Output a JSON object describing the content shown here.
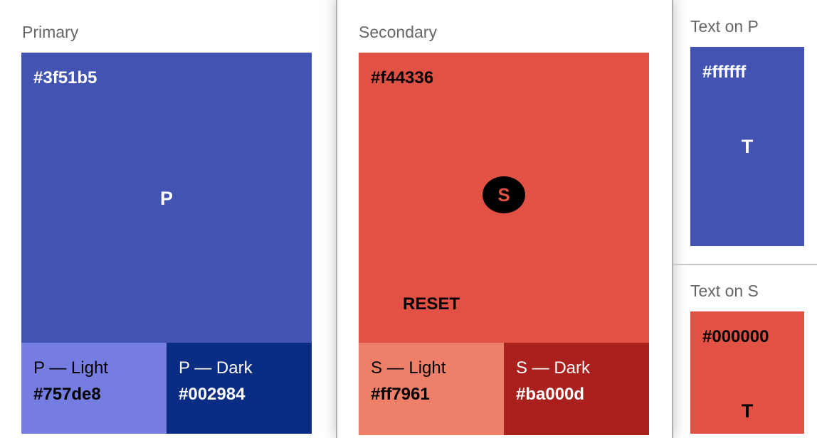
{
  "primary": {
    "title": "Primary",
    "hex": "#3f51b5",
    "letter": "P",
    "light_label": "P — Light",
    "light_hex": "#757de8",
    "dark_label": "P — Dark",
    "dark_hex": "#002984"
  },
  "secondary": {
    "title": "Secondary",
    "hex": "#f44336",
    "letter": "S",
    "reset": "RESET",
    "light_label": "S — Light",
    "light_hex": "#ff7961",
    "dark_label": "S — Dark",
    "dark_hex": "#ba000d"
  },
  "text_on_p": {
    "title": "Text on P",
    "hex": "#ffffff",
    "letter": "T"
  },
  "text_on_s": {
    "title": "Text on S",
    "hex": "#000000",
    "letter": "T"
  },
  "colors": {
    "primary": "#4253b2",
    "primary_light": "#757de0",
    "primary_dark": "#0a2c82",
    "secondary": "#e25244",
    "secondary_light": "#ee806a",
    "secondary_dark": "#a9201c"
  }
}
